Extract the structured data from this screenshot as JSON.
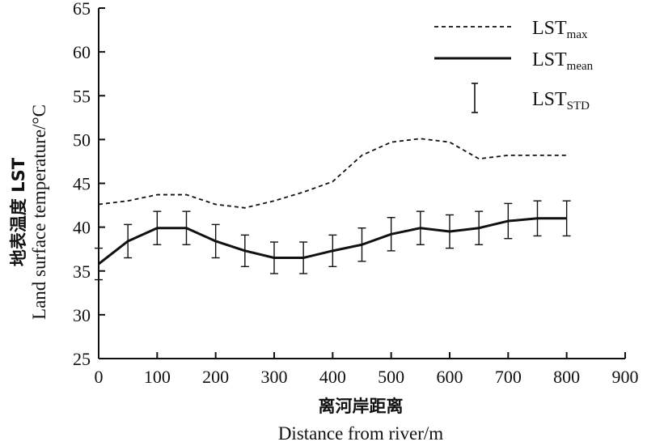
{
  "chart_data": {
    "type": "line",
    "x": [
      0,
      50,
      100,
      150,
      200,
      250,
      300,
      350,
      400,
      450,
      500,
      550,
      600,
      650,
      700,
      750,
      800
    ],
    "series": [
      {
        "name": "LST_max",
        "style": "dashed",
        "values": [
          42.6,
          43.0,
          43.7,
          43.7,
          42.6,
          42.2,
          43.0,
          44.0,
          45.2,
          48.2,
          49.7,
          50.1,
          49.7,
          47.8,
          48.2,
          48.2,
          48.2
        ]
      },
      {
        "name": "LST_mean",
        "style": "solid",
        "values": [
          35.8,
          38.4,
          39.9,
          39.9,
          38.4,
          37.3,
          36.5,
          36.5,
          37.3,
          38.0,
          39.2,
          39.9,
          39.5,
          39.9,
          40.7,
          41.0,
          41.0
        ],
        "error": [
          1.8,
          1.9,
          1.9,
          1.9,
          1.9,
          1.8,
          1.8,
          1.8,
          1.8,
          1.9,
          1.9,
          1.9,
          1.9,
          1.9,
          2.0,
          2.0,
          2.0
        ]
      }
    ],
    "legend": [
      {
        "base": "LST",
        "sub": "max",
        "style": "dashed"
      },
      {
        "base": "LST",
        "sub": "mean",
        "style": "solid"
      },
      {
        "base": "LST",
        "sub": "STD",
        "style": "errorbar"
      }
    ],
    "legend_position": "top-right",
    "xlim": [
      0,
      900
    ],
    "ylim": [
      25,
      65
    ],
    "x_ticks": [
      0,
      100,
      200,
      300,
      400,
      500,
      600,
      700,
      800,
      900
    ],
    "y_ticks": [
      25,
      30,
      35,
      40,
      45,
      50,
      55,
      60,
      65
    ],
    "xlabel_cn": "离河岸距离",
    "xlabel": "Distance from river/m",
    "ylabel_cn": "地表温度 LST",
    "ylabel": "Land surface temperature/°C",
    "grid": false,
    "colors": {
      "line": "#111111",
      "axis": "#111111"
    }
  }
}
